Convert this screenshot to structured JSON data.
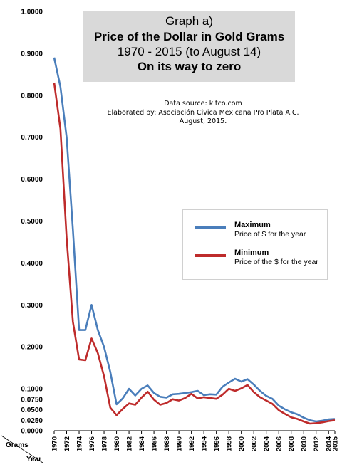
{
  "chart_data": {
    "type": "line",
    "title": {
      "line1": "Graph a)",
      "line2": "Price of the Dollar in Gold Grams",
      "line3": "1970 - 2015 (to August 14)",
      "line4": "On its way to zero"
    },
    "source": {
      "line1": "Data source: kitco.com",
      "line2": "Elaborated by: Asociación Civica Mexicana Pro Plata A.C.",
      "line3": "August, 2015."
    },
    "ylabel": "Grams",
    "xlabel": "Year",
    "ylim": [
      0,
      1.0
    ],
    "yticks": [
      "1.0000",
      "0.9000",
      "0.8000",
      "0.7000",
      "0.6000",
      "0.5000",
      "0.4000",
      "0.3000",
      "0.2000",
      "0.1000",
      "0.0750",
      "0.0500",
      "0.0250",
      "0.0000"
    ],
    "ytick_values": [
      1.0,
      0.9,
      0.8,
      0.7,
      0.6,
      0.5,
      0.4,
      0.3,
      0.2,
      0.1,
      0.075,
      0.05,
      0.025,
      0.0
    ],
    "xticks": [
      "1970",
      "1972",
      "1974",
      "1976",
      "1978",
      "1980",
      "1982",
      "1984",
      "1986",
      "1988",
      "1990",
      "1992",
      "1994",
      "1996",
      "1998",
      "2000",
      "2002",
      "2004",
      "2006",
      "2008",
      "2010",
      "2012",
      "2014",
      "2015"
    ],
    "x": [
      1970,
      1971,
      1972,
      1973,
      1974,
      1975,
      1976,
      1977,
      1978,
      1979,
      1980,
      1981,
      1982,
      1983,
      1984,
      1985,
      1986,
      1987,
      1988,
      1989,
      1990,
      1991,
      1992,
      1993,
      1994,
      1995,
      1996,
      1997,
      1998,
      1999,
      2000,
      2001,
      2002,
      2003,
      2004,
      2005,
      2006,
      2007,
      2008,
      2009,
      2010,
      2011,
      2012,
      2013,
      2014,
      2015
    ],
    "series": [
      {
        "name": "Maximum",
        "description": "Price of $ for the year",
        "color": "#4a7ebb",
        "values": [
          0.89,
          0.82,
          0.7,
          0.48,
          0.24,
          0.24,
          0.3,
          0.24,
          0.2,
          0.14,
          0.063,
          0.077,
          0.1,
          0.084,
          0.1,
          0.108,
          0.09,
          0.081,
          0.079,
          0.087,
          0.088,
          0.09,
          0.092,
          0.095,
          0.085,
          0.087,
          0.086,
          0.105,
          0.115,
          0.124,
          0.117,
          0.123,
          0.11,
          0.095,
          0.083,
          0.076,
          0.06,
          0.051,
          0.044,
          0.039,
          0.031,
          0.025,
          0.022,
          0.024,
          0.027,
          0.028
        ]
      },
      {
        "name": "Minimum",
        "description": "Price of the $ for the year",
        "color": "#be2b2b",
        "values": [
          0.83,
          0.72,
          0.46,
          0.26,
          0.17,
          0.168,
          0.22,
          0.185,
          0.13,
          0.055,
          0.037,
          0.052,
          0.065,
          0.062,
          0.079,
          0.093,
          0.074,
          0.062,
          0.066,
          0.075,
          0.072,
          0.078,
          0.088,
          0.077,
          0.08,
          0.078,
          0.076,
          0.086,
          0.1,
          0.095,
          0.101,
          0.109,
          0.092,
          0.08,
          0.072,
          0.064,
          0.049,
          0.04,
          0.032,
          0.028,
          0.022,
          0.017,
          0.018,
          0.02,
          0.023,
          0.025
        ]
      }
    ],
    "grid": false,
    "legend": "right-middle"
  }
}
